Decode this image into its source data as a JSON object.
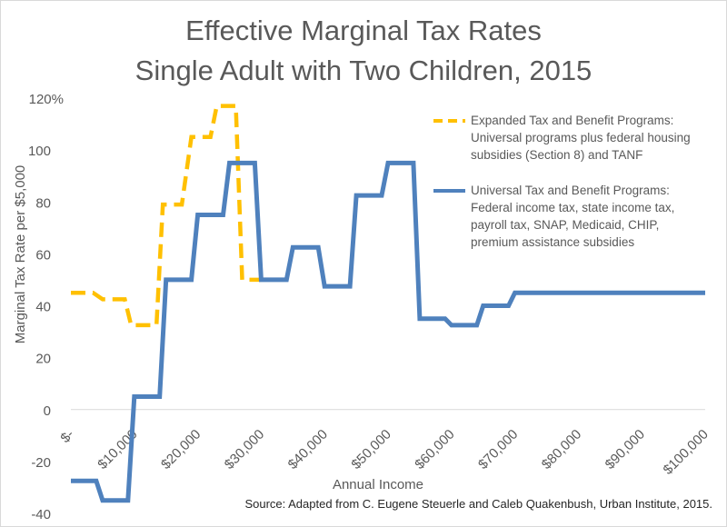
{
  "title_line1": "Effective Marginal Tax Rates",
  "title_line2": "Single Adult with Two Children, 2015",
  "source": "Source: Adapted from C. Eugene Steuerle and Caleb Quakenbush, Urban Institute, 2015.",
  "colors": {
    "expanded": "#FFC000",
    "universal": "#4F81BD",
    "text": "#595959",
    "axis": "#d9d9d9"
  },
  "chart_data": {
    "type": "line",
    "title": "Effective Marginal Tax Rates Single Adult with Two Children, 2015",
    "xlabel": "Annual Income",
    "ylabel": "Marginal Tax Rate per $5,000",
    "xlim": [
      0,
      100000
    ],
    "ylim": [
      -40,
      120
    ],
    "y_ticks": [
      -40,
      -20,
      0,
      20,
      40,
      60,
      80,
      100,
      120
    ],
    "y_tick_labels": [
      "-40",
      "-20",
      "0",
      "20",
      "40",
      "60",
      "80",
      "100",
      "120%"
    ],
    "x_ticks": [
      0,
      10000,
      20000,
      30000,
      40000,
      50000,
      60000,
      70000,
      80000,
      90000,
      100000
    ],
    "x_tick_labels": [
      "$-",
      "$10,000",
      "$20,000",
      "$30,000",
      "$40,000",
      "$50,000",
      "$60,000",
      "$70,000",
      "$80,000",
      "$90,000",
      "$100,000"
    ],
    "grid": false,
    "legend_position": "right",
    "series": [
      {
        "name": "Expanded Tax and Benefit Programs:",
        "legend_lines": [
          "Expanded Tax and Benefit Programs:",
          "Universal programs plus federal housing",
          "subsidies (Section 8) and TANF"
        ],
        "style": "dashed",
        "color": "#FFC000",
        "x": [
          0,
          3500,
          5000,
          8500,
          9500,
          13500,
          14500,
          17500,
          19000,
          22000,
          23000,
          26000,
          27000,
          30000
        ],
        "y": [
          45,
          45,
          42.5,
          42.5,
          32.5,
          32.5,
          79,
          79,
          105,
          105,
          117,
          117,
          50,
          50
        ]
      },
      {
        "name": "Universal Tax and Benefit Programs:",
        "legend_lines": [
          "Universal Tax and Benefit Programs:",
          "Federal income tax, state income tax,",
          "payroll tax, SNAP, Medicaid, CHIP,",
          "premium assistance subsidies"
        ],
        "style": "solid",
        "color": "#4F81BD",
        "x": [
          0,
          4000,
          5000,
          9000,
          10000,
          14000,
          15000,
          19000,
          20000,
          24000,
          25000,
          29000,
          30000,
          34000,
          35000,
          39000,
          40000,
          44000,
          45000,
          49000,
          50000,
          54000,
          55000,
          59000,
          60000,
          64000,
          65000,
          69000,
          70000,
          74000,
          75000,
          100000
        ],
        "y": [
          -27.5,
          -27.5,
          -35,
          -35,
          5,
          5,
          50,
          50,
          75,
          75,
          95,
          95,
          50,
          50,
          62.5,
          62.5,
          47.5,
          47.5,
          82.5,
          82.5,
          95,
          95,
          35,
          35,
          32.5,
          32.5,
          40,
          40,
          45,
          45,
          45,
          45
        ]
      }
    ]
  }
}
